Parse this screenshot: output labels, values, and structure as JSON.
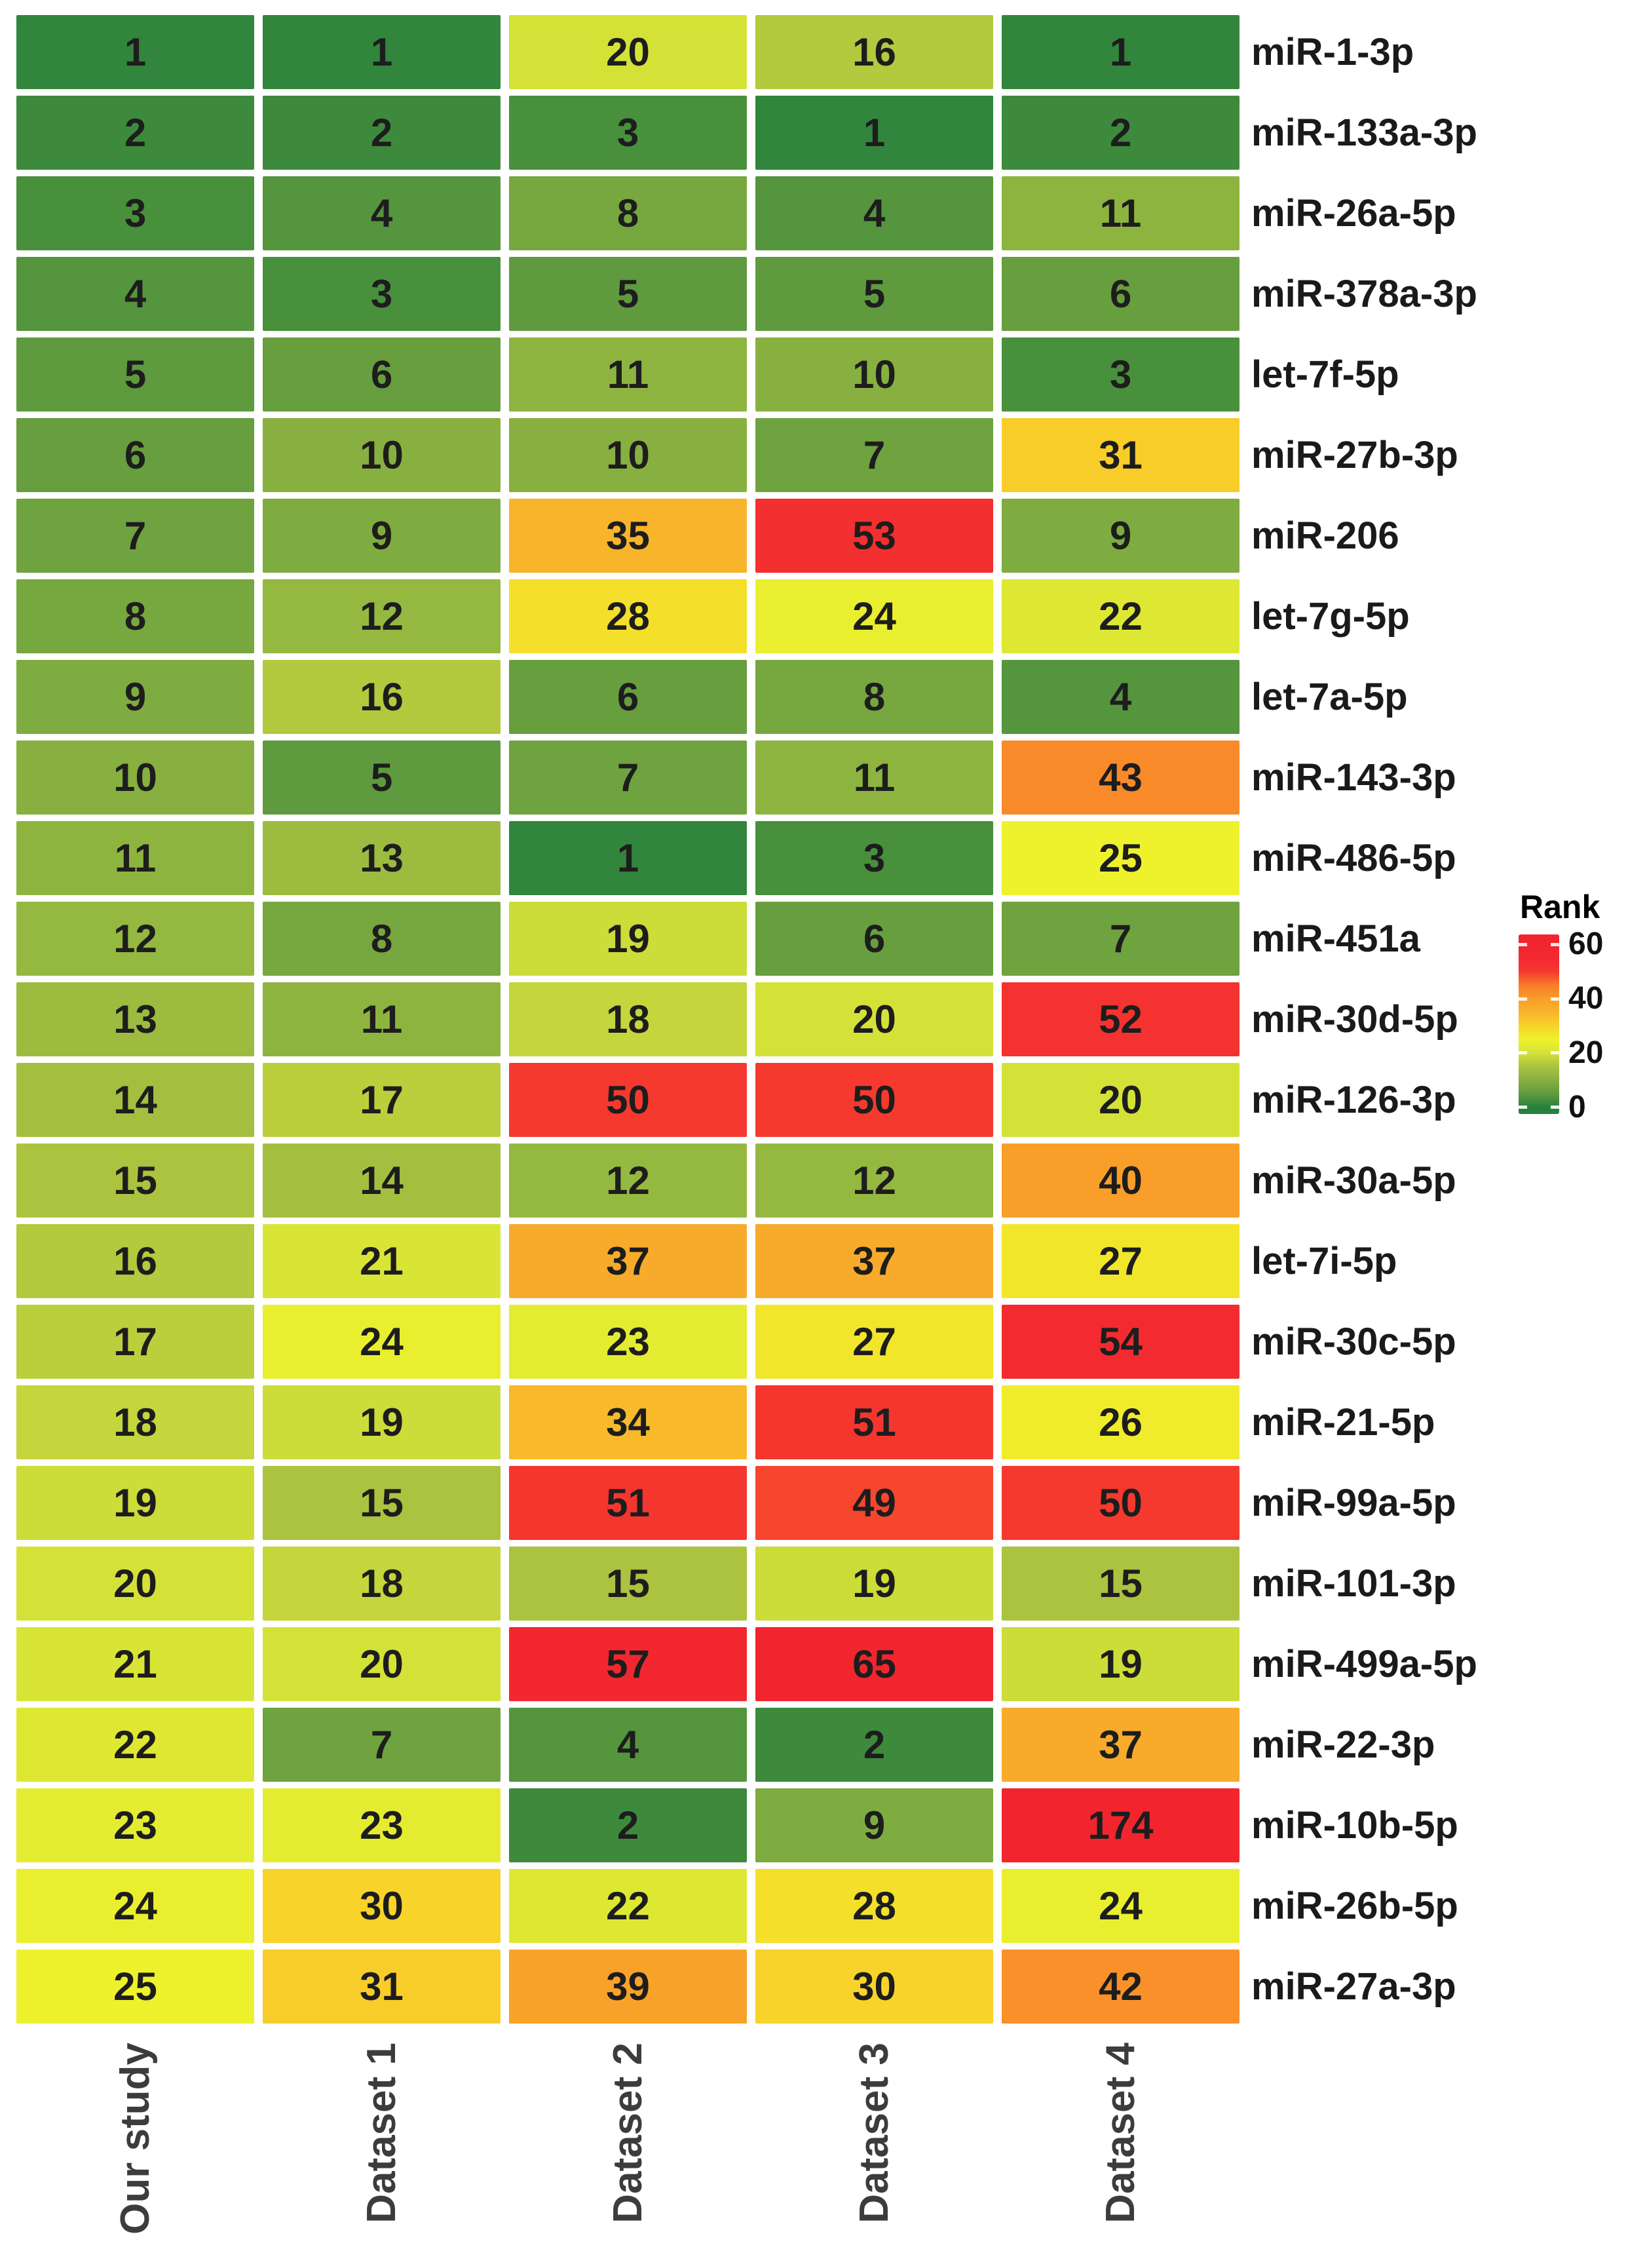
{
  "chart_data": {
    "type": "heatmap",
    "legend_title": "Rank",
    "columns": [
      "Our study",
      "Dataset 1",
      "Dataset 2",
      "Dataset 3",
      "Dataset 4"
    ],
    "rows": [
      "miR-1-3p",
      "miR-133a-3p",
      "miR-26a-5p",
      "miR-378a-3p",
      "let-7f-5p",
      "miR-27b-3p",
      "miR-206",
      "let-7g-5p",
      "let-7a-5p",
      "miR-143-3p",
      "miR-486-5p",
      "miR-451a",
      "miR-30d-5p",
      "miR-126-3p",
      "miR-30a-5p",
      "let-7i-5p",
      "miR-30c-5p",
      "miR-21-5p",
      "miR-99a-5p",
      "miR-101-3p",
      "miR-499a-5p",
      "miR-22-3p",
      "miR-10b-5p",
      "miR-26b-5p",
      "miR-27a-3p"
    ],
    "values": [
      [
        1,
        1,
        20,
        16,
        1
      ],
      [
        2,
        2,
        3,
        1,
        2
      ],
      [
        3,
        4,
        8,
        4,
        11
      ],
      [
        4,
        3,
        5,
        5,
        6
      ],
      [
        5,
        6,
        11,
        10,
        3
      ],
      [
        6,
        10,
        10,
        7,
        31
      ],
      [
        7,
        9,
        35,
        53,
        9
      ],
      [
        8,
        12,
        28,
        24,
        22
      ],
      [
        9,
        16,
        6,
        8,
        4
      ],
      [
        10,
        5,
        7,
        11,
        43
      ],
      [
        11,
        13,
        1,
        3,
        25
      ],
      [
        12,
        8,
        19,
        6,
        7
      ],
      [
        13,
        11,
        18,
        20,
        52
      ],
      [
        14,
        17,
        50,
        50,
        20
      ],
      [
        15,
        14,
        12,
        12,
        40
      ],
      [
        16,
        21,
        37,
        37,
        27
      ],
      [
        17,
        24,
        23,
        27,
        54
      ],
      [
        18,
        19,
        34,
        51,
        26
      ],
      [
        19,
        15,
        51,
        49,
        50
      ],
      [
        20,
        18,
        15,
        19,
        15
      ],
      [
        21,
        20,
        57,
        65,
        19
      ],
      [
        22,
        7,
        4,
        2,
        37
      ],
      [
        23,
        23,
        2,
        9,
        174
      ],
      [
        24,
        30,
        22,
        28,
        24
      ],
      [
        25,
        31,
        39,
        30,
        42
      ]
    ],
    "color_scale": {
      "min": 0,
      "max": 60,
      "ticks": [
        60,
        40,
        20,
        0
      ],
      "stops": [
        {
          "v": 0,
          "c": "#27803c"
        },
        {
          "v": 5,
          "c": "#5f9a3e"
        },
        {
          "v": 10,
          "c": "#87b040"
        },
        {
          "v": 15,
          "c": "#abc33f"
        },
        {
          "v": 20,
          "c": "#d4e238"
        },
        {
          "v": 25,
          "c": "#eef22c"
        },
        {
          "v": 30,
          "c": "#f8d32a"
        },
        {
          "v": 35,
          "c": "#f8b42b"
        },
        {
          "v": 40,
          "c": "#f99e28"
        },
        {
          "v": 45,
          "c": "#f97c2b"
        },
        {
          "v": 50,
          "c": "#f5392f"
        },
        {
          "v": 55,
          "c": "#f32830"
        },
        {
          "v": 60,
          "c": "#f2252e"
        }
      ]
    },
    "legend_position": "right",
    "grid": false
  },
  "colors": {
    "background": "#ffffff",
    "cell_gap": "#ffffff",
    "cell_text": "#1d1d1d",
    "row_label_text": "#1a1a1a",
    "column_label_text": "#3c3c3c",
    "legend_text": "#111111"
  }
}
